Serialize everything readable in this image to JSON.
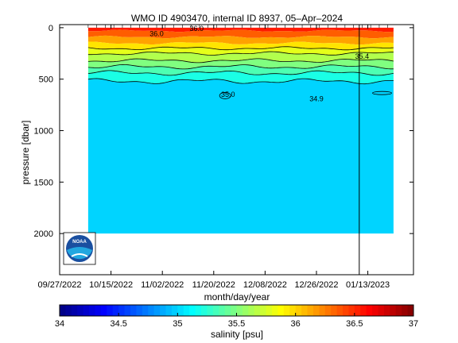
{
  "chart_data": {
    "type": "heatmap",
    "title": "WMO ID 4903470, internal ID 8937, 05–Apr–2024",
    "xlabel": "month/day/year",
    "ylabel": "pressure [dbar]",
    "x_ticks": [
      "09/27/2022",
      "10/15/2022",
      "11/02/2022",
      "11/20/2022",
      "12/08/2022",
      "12/26/2022",
      "01/13/2023"
    ],
    "y_ticks": [
      0,
      500,
      1000,
      1500,
      2000
    ],
    "xlim_days": [
      0,
      124
    ],
    "ylim": [
      2400,
      -30
    ],
    "data_x_range": [
      10,
      117
    ],
    "data_pressure_range": [
      0,
      2000
    ],
    "vertical_marker_day": 105,
    "contour_labels": [
      {
        "text": "36.0",
        "day": 48,
        "pressure": 8
      },
      {
        "text": "36.0",
        "day": 34,
        "pressure": 60
      },
      {
        "text": "35.4",
        "day": 106,
        "pressure": 280
      },
      {
        "text": "35.0",
        "day": 59,
        "pressure": 650
      },
      {
        "text": "34.9",
        "day": 90,
        "pressure": 690
      }
    ],
    "salinity_layers": [
      {
        "salinity": 36.55,
        "top": 0,
        "bottom": 30
      },
      {
        "salinity": 36.35,
        "top": 30,
        "bottom": 90
      },
      {
        "salinity": 36.15,
        "top": 90,
        "bottom": 150
      },
      {
        "salinity": 35.95,
        "top": 150,
        "bottom": 200
      },
      {
        "salinity": 35.8,
        "top": 200,
        "bottom": 250
      },
      {
        "salinity": 35.65,
        "top": 250,
        "bottom": 320
      },
      {
        "salinity": 35.5,
        "top": 320,
        "bottom": 380
      },
      {
        "salinity": 35.35,
        "top": 380,
        "bottom": 440
      },
      {
        "salinity": 35.2,
        "top": 440,
        "bottom": 520
      },
      {
        "salinity": 35.0,
        "top": 520,
        "bottom": 2000
      }
    ],
    "colorbar": {
      "label": "salinity [psu]",
      "min": 34,
      "max": 37,
      "ticks": [
        "34",
        "34.5",
        "35",
        "35.5",
        "36",
        "36.5",
        "37"
      ]
    },
    "grid": false
  },
  "logo_text": "NOAA",
  "colors": {
    "background": "#ffffff",
    "contour_line": "#000000",
    "marker_line": "#000000"
  }
}
